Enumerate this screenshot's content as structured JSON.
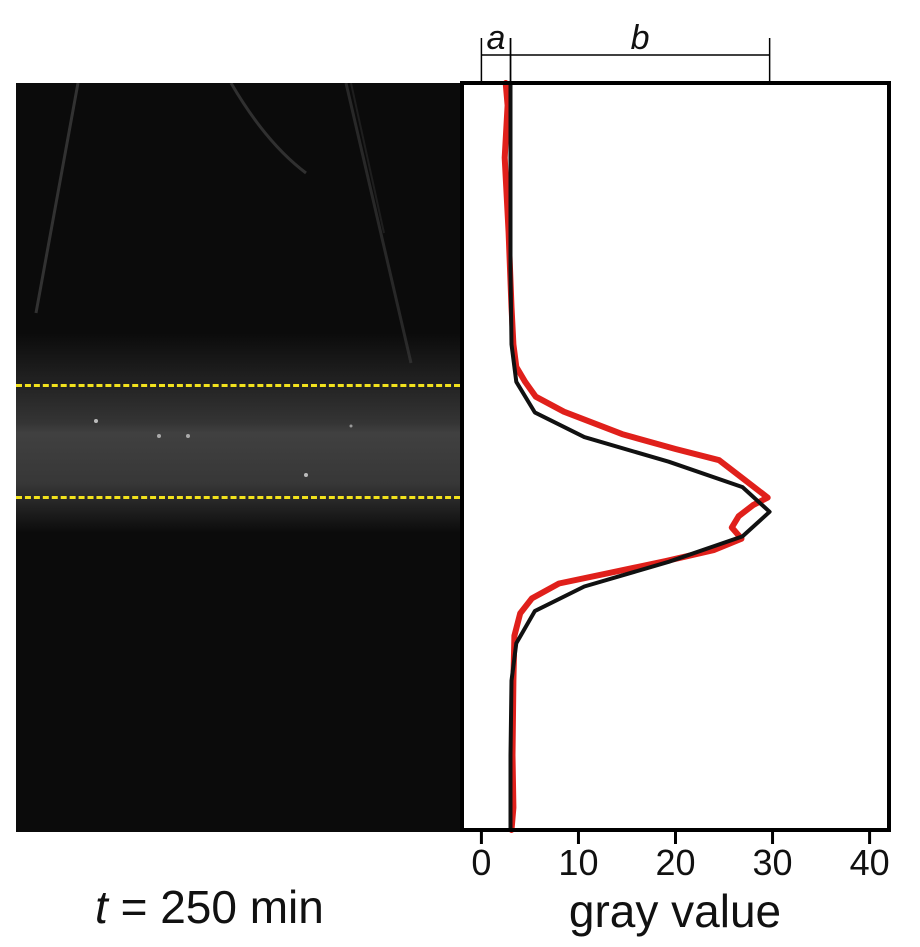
{
  "left_panel": {
    "time_var": "t",
    "time_value": "= 250 min"
  },
  "chart_data": {
    "type": "line",
    "orientation": "vertical-profile",
    "xlabel": "gray value",
    "xlim": [
      -2,
      42
    ],
    "xticks": [
      0,
      10,
      20,
      30,
      40
    ],
    "ylim": [
      0,
      100
    ],
    "grid": false,
    "brackets": [
      {
        "label": "a",
        "from": 0,
        "to": 3
      },
      {
        "label": "b",
        "from": 3,
        "to": 29.7
      }
    ],
    "series": [
      {
        "color": "#e0201b",
        "x": [
          2.5,
          2.7,
          2.4,
          2.8,
          3.1,
          3.3,
          3.6,
          4.5,
          5.6,
          8.5,
          14.5,
          20.0,
          24.5,
          27.0,
          29.5,
          28.0,
          26.5,
          25.8,
          26.8,
          24.0,
          19.0,
          13.5,
          8.0,
          5.2,
          4.0,
          3.4,
          3.3,
          3.2,
          3.3,
          3.1
        ],
        "y": [
          100,
          97,
          90,
          80,
          70,
          65,
          62,
          60,
          58,
          56,
          53,
          51,
          49.5,
          47,
          44.5,
          43.5,
          42,
          40.5,
          39,
          37.5,
          36,
          34.5,
          33,
          31,
          29,
          26,
          20,
          10,
          3,
          0
        ]
      },
      {
        "color": "#111111",
        "x": [
          3,
          3,
          3.1,
          3.6,
          5.5,
          10.6,
          19.3,
          26.9,
          29.7,
          26.9,
          19.3,
          10.6,
          5.5,
          3.6,
          3.1,
          3,
          3
        ],
        "y": [
          100,
          75,
          65,
          60,
          55.9,
          52.6,
          49.3,
          45.9,
          42.6,
          39.3,
          35.9,
          32.6,
          29.3,
          25,
          20,
          10,
          0
        ]
      }
    ]
  }
}
